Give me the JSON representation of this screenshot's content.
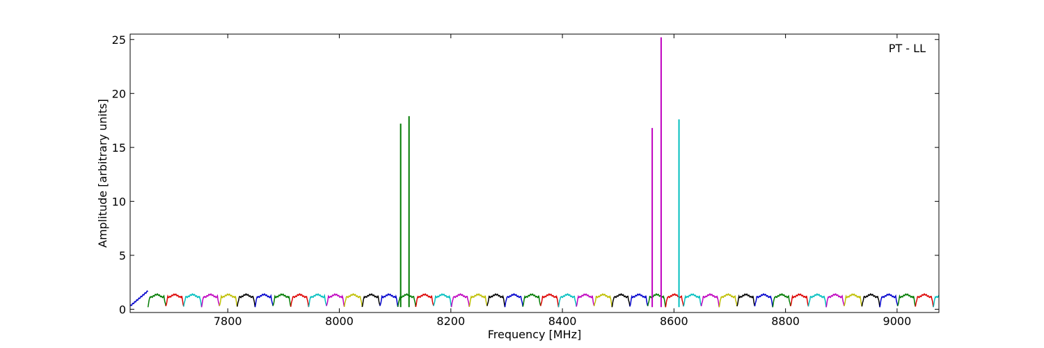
{
  "chart_data": {
    "type": "line",
    "title": "",
    "xlabel": "Frequency [MHz]",
    "ylabel": "Amplitude [arbitrary units]",
    "annotation": "PT - LL",
    "annotation_position": "top-right",
    "xlim": [
      7625,
      9075
    ],
    "ylim": [
      -0.3,
      25.5
    ],
    "xticks": [
      7800,
      8000,
      8200,
      8400,
      8600,
      8800,
      9000
    ],
    "yticks": [
      0,
      5,
      10,
      15,
      20,
      25
    ],
    "grid": false,
    "legend": "none",
    "channel_width_mhz": 32,
    "channel_start_mhz": 7625,
    "channel_colors": [
      "#0000cc",
      "#007a00",
      "#dd0000",
      "#00bfbf",
      "#bf00bf",
      "#bfbf00",
      "#000000"
    ],
    "spikes": [
      {
        "x": 8110,
        "y": 17.2,
        "color": "#007a00"
      },
      {
        "x": 8125,
        "y": 17.9,
        "color": "#007a00"
      },
      {
        "x": 8561,
        "y": 16.8,
        "color": "#bf00bf"
      },
      {
        "x": 8577,
        "y": 25.2,
        "color": "#bf00bf"
      },
      {
        "x": 8609,
        "y": 17.6,
        "color": "#00bfbf"
      }
    ]
  }
}
